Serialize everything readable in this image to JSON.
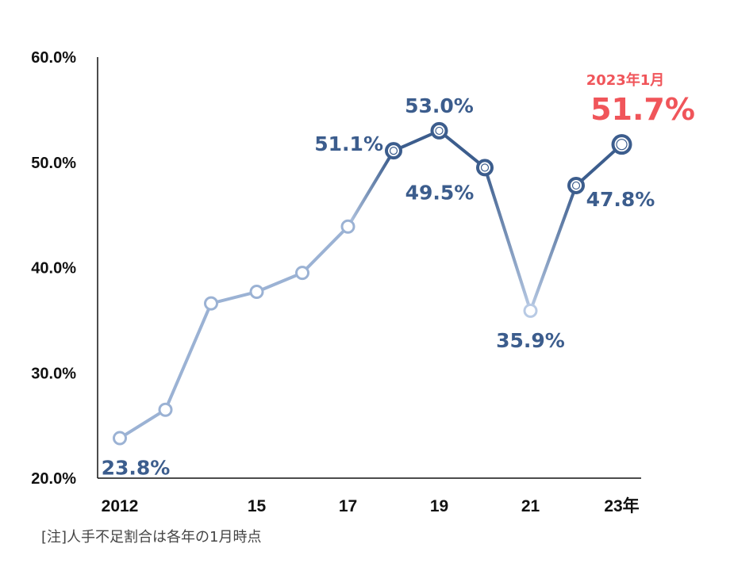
{
  "chart_data": {
    "type": "line",
    "x": [
      2012,
      2013,
      2014,
      2015,
      2016,
      2017,
      2018,
      2019,
      2020,
      2021,
      2022,
      2023
    ],
    "values": [
      23.8,
      26.5,
      36.6,
      37.7,
      39.5,
      43.9,
      51.1,
      53.0,
      49.5,
      35.9,
      47.8,
      51.7
    ],
    "ylim": [
      20,
      60
    ],
    "yticks": [
      20,
      30,
      40,
      50,
      60
    ],
    "ytick_labels": [
      "20.0%",
      "30.0%",
      "40.0%",
      "50.0%",
      "60.0%"
    ],
    "xticks": [
      2012,
      2015,
      2017,
      2019,
      2021,
      2023
    ],
    "xtick_labels": [
      "2012",
      "15",
      "17",
      "19",
      "21",
      "23年"
    ],
    "data_labels": [
      {
        "x": 2012,
        "text": "23.8%"
      },
      {
        "x": 2018,
        "text": "51.1%"
      },
      {
        "x": 2019,
        "text": "53.0%"
      },
      {
        "x": 2020,
        "text": "49.5%"
      },
      {
        "x": 2021,
        "text": "35.9%"
      },
      {
        "x": 2022,
        "text": "47.8%"
      }
    ],
    "highlight": {
      "x": 2023,
      "label": "2023年1月",
      "value_text": "51.7%"
    },
    "colors": {
      "light": "#9bb2d4",
      "lighter": "#b8cae4",
      "dark": "#3c5d8d",
      "highlight": "#f0555a"
    }
  },
  "note": "[注]人手不足割合は各年の1月時点"
}
